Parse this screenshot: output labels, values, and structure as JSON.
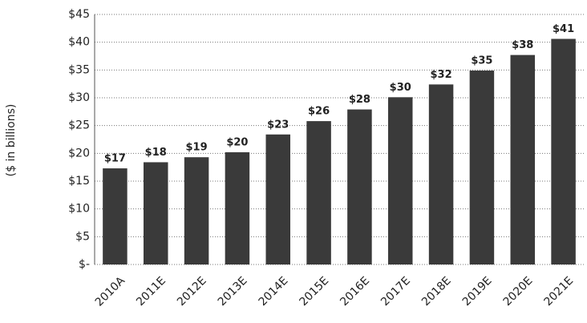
{
  "chart_data": {
    "type": "bar",
    "y_label": "($ in billions)",
    "categories": [
      "2010A",
      "2011E",
      "2012E",
      "2013E",
      "2014E",
      "2015E",
      "2016E",
      "2017E",
      "2018E",
      "2019E",
      "2020E",
      "2021E"
    ],
    "values": [
      17.3,
      18.4,
      19.3,
      20.2,
      23.4,
      25.8,
      27.9,
      30.1,
      32.4,
      34.9,
      37.7,
      40.6
    ],
    "value_labels": [
      "$17",
      "$18",
      "$19",
      "$20",
      "$23",
      "$26",
      "$28",
      "$30",
      "$32",
      "$35",
      "$38",
      "$41"
    ],
    "color": "#3a3a3a",
    "ylim": [
      0,
      45
    ],
    "yticks": [
      {
        "value": 0,
        "label": "$-"
      },
      {
        "value": 5,
        "label": "$5"
      },
      {
        "value": 10,
        "label": "$10"
      },
      {
        "value": 15,
        "label": "$15"
      },
      {
        "value": 20,
        "label": "$20"
      },
      {
        "value": 25,
        "label": "$25"
      },
      {
        "value": 30,
        "label": "$30"
      },
      {
        "value": 35,
        "label": "$35"
      },
      {
        "value": 40,
        "label": "$40"
      },
      {
        "value": 45,
        "label": "$45"
      }
    ],
    "grid": true
  }
}
